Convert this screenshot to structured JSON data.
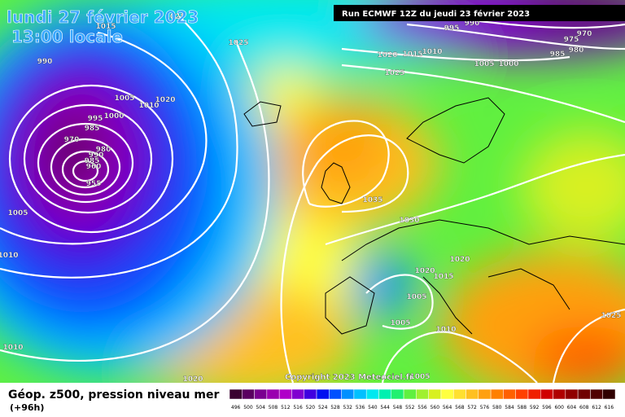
{
  "header": {
    "date": "lundi 27 février 2023",
    "time": "13:00 locale",
    "run": "Run ECMWF 12Z du jeudi 23 février 2023"
  },
  "isobar_labels": [
    "1025",
    "1015",
    "990",
    "1025",
    "1005",
    "1010",
    "1020",
    "1000",
    "995",
    "985",
    "970",
    "980",
    "990",
    "985",
    "960",
    "955",
    "1005",
    "1010",
    "1010",
    "1020",
    "995",
    "990",
    "1020",
    "1015",
    "1010",
    "1025",
    "1005",
    "1000",
    "985",
    "980",
    "975",
    "970",
    "1035",
    "1030",
    "1020",
    "1020",
    "1015",
    "1005",
    "1005",
    "1010",
    "1025",
    "1005"
  ],
  "copyright": "Copyright 2023 Meteociel.fr",
  "legend": {
    "title": "Géop. z500, pression niveau mer",
    "subtitle": "(+96h)",
    "scale": [
      496,
      500,
      504,
      508,
      512,
      516,
      520,
      524,
      528,
      532,
      536,
      540,
      544,
      548,
      552,
      556,
      560,
      564,
      568,
      572,
      576,
      580,
      584,
      588,
      592,
      596,
      600,
      604,
      608,
      612,
      616
    ],
    "colors": [
      "#3a0030",
      "#5a0060",
      "#7a0090",
      "#9a00b0",
      "#b000c8",
      "#8000d0",
      "#4000e0",
      "#0010f0",
      "#0050ff",
      "#0090ff",
      "#00c0ff",
      "#00e8f0",
      "#00f0b0",
      "#20f070",
      "#60f040",
      "#a0f030",
      "#d8f020",
      "#ffff40",
      "#ffe030",
      "#ffc020",
      "#ffa010",
      "#ff8000",
      "#ff6000",
      "#ff4000",
      "#f02000",
      "#d00000",
      "#b00000",
      "#900000",
      "#700000",
      "#500000",
      "#300000"
    ]
  }
}
